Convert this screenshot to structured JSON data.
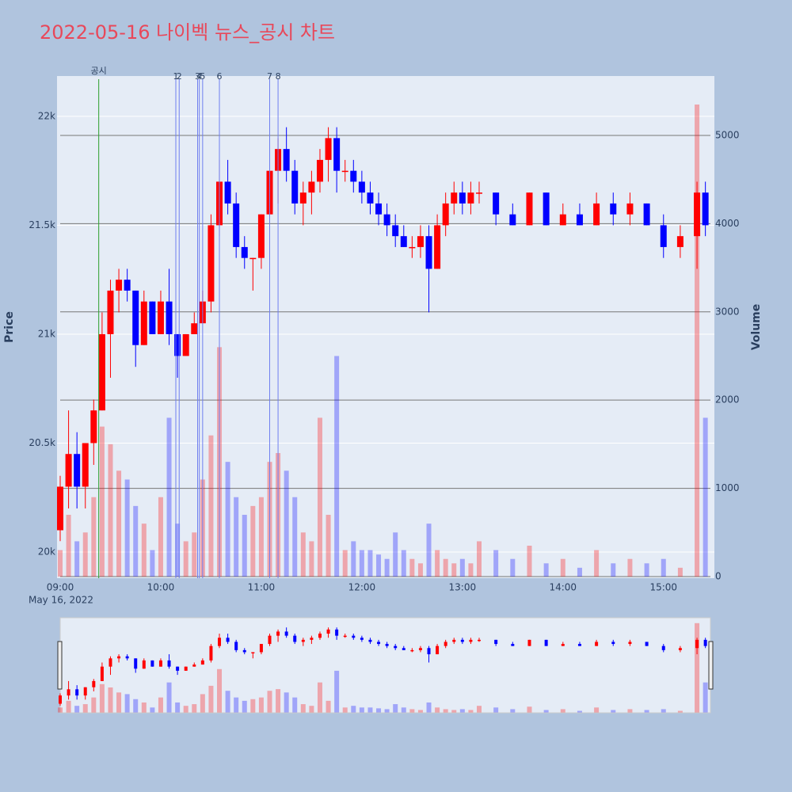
{
  "chart_data": {
    "type": "candlestick",
    "title": "2022-05-16 나이벡 뉴스_공시 차트",
    "y_label": "Price",
    "y2_label": "Volume",
    "date_label": "May 16, 2022",
    "increasing_color": "#ff0000",
    "decreasing_color": "#0000ff",
    "xlim": [
      "09:00",
      "15:28"
    ],
    "xticks": [
      "09:00",
      "10:00",
      "11:00",
      "12:00",
      "13:00",
      "14:00",
      "15:00"
    ],
    "ylim": [
      19880,
      22185
    ],
    "yticks": [
      {
        "value": 20000,
        "label": "20k"
      },
      {
        "value": 20500,
        "label": "20.5k"
      },
      {
        "value": 21000,
        "label": "21k"
      },
      {
        "value": 21500,
        "label": "21.5k"
      },
      {
        "value": 22000,
        "label": "22k"
      }
    ],
    "y2lim": [
      -18,
      5673
    ],
    "y2ticks": [
      0,
      1000,
      2000,
      3000,
      4000,
      5000
    ],
    "events": [
      {
        "x": "09:23",
        "label": "공시",
        "color": "#2ca02c"
      },
      {
        "x": "10:09",
        "label": "1",
        "color": "#6f7ff0"
      },
      {
        "x": "10:11",
        "label": "2",
        "color": "#6f7ff0"
      },
      {
        "x": "10:22",
        "label": "3",
        "color": "#6f7ff0"
      },
      {
        "x": "10:23",
        "label": "4",
        "color": "#6f7ff0"
      },
      {
        "x": "10:25",
        "label": "5",
        "color": "#6f7ff0"
      },
      {
        "x": "10:35",
        "label": "6",
        "color": "#6f7ff0"
      },
      {
        "x": "11:05",
        "label": "7",
        "color": "#6f7ff0"
      },
      {
        "x": "11:10",
        "label": "8",
        "color": "#6f7ff0"
      }
    ],
    "x": [
      "09:00",
      "09:05",
      "09:10",
      "09:15",
      "09:20",
      "09:25",
      "09:30",
      "09:35",
      "09:40",
      "09:45",
      "09:50",
      "09:55",
      "10:00",
      "10:05",
      "10:10",
      "10:15",
      "10:20",
      "10:25",
      "10:30",
      "10:35",
      "10:40",
      "10:45",
      "10:50",
      "10:55",
      "11:00",
      "11:05",
      "11:10",
      "11:15",
      "11:20",
      "11:25",
      "11:30",
      "11:35",
      "11:40",
      "11:45",
      "11:50",
      "11:55",
      "12:00",
      "12:05",
      "12:10",
      "12:15",
      "12:20",
      "12:25",
      "12:30",
      "12:35",
      "12:40",
      "12:45",
      "12:50",
      "12:55",
      "13:00",
      "13:05",
      "13:10",
      "13:20",
      "13:30",
      "13:40",
      "13:50",
      "14:00",
      "14:10",
      "14:20",
      "14:30",
      "14:40",
      "14:50",
      "15:00",
      "15:10",
      "15:20",
      "15:25"
    ],
    "open": [
      20100,
      20300,
      20450,
      20300,
      20500,
      20650,
      21000,
      21200,
      21250,
      21200,
      20950,
      21150,
      21000,
      21150,
      21000,
      20900,
      21000,
      21050,
      21150,
      21500,
      21700,
      21600,
      21400,
      21350,
      21350,
      21550,
      21750,
      21850,
      21750,
      21600,
      21650,
      21700,
      21800,
      21900,
      21750,
      21750,
      21700,
      21650,
      21600,
      21550,
      21500,
      21450,
      21400,
      21400,
      21450,
      21300,
      21500,
      21600,
      21650,
      21600,
      21650,
      21650,
      21550,
      21500,
      21650,
      21500,
      21550,
      21500,
      21600,
      21550,
      21600,
      21500,
      21400,
      21450,
      21650
    ],
    "high": [
      20350,
      20650,
      20550,
      20500,
      20700,
      21100,
      21250,
      21300,
      21300,
      21200,
      21200,
      21150,
      21200,
      21300,
      21000,
      21000,
      21100,
      21200,
      21550,
      21800,
      21800,
      21650,
      21450,
      21350,
      21550,
      21800,
      21900,
      21950,
      21800,
      21700,
      21750,
      21850,
      21950,
      21950,
      21800,
      21800,
      21750,
      21700,
      21650,
      21600,
      21550,
      21500,
      21450,
      21500,
      21500,
      21550,
      21650,
      21700,
      21700,
      21700,
      21700,
      21650,
      21600,
      21650,
      21650,
      21600,
      21600,
      21650,
      21650,
      21650,
      21600,
      21550,
      21500,
      21700,
      21700
    ],
    "low": [
      20050,
      20200,
      20200,
      20200,
      20400,
      20650,
      20800,
      21100,
      21150,
      20850,
      20950,
      21000,
      21000,
      20950,
      20800,
      20900,
      21000,
      21050,
      21100,
      21450,
      21550,
      21350,
      21300,
      21200,
      21300,
      21500,
      21600,
      21700,
      21550,
      21500,
      21550,
      21650,
      21700,
      21650,
      21700,
      21650,
      21600,
      21550,
      21500,
      21450,
      21400,
      21400,
      21350,
      21350,
      21100,
      21300,
      21450,
      21550,
      21550,
      21550,
      21600,
      21500,
      21500,
      21500,
      21500,
      21500,
      21500,
      21500,
      21500,
      21500,
      21500,
      21350,
      21350,
      21300,
      21450
    ],
    "close": [
      20300,
      20450,
      20300,
      20500,
      20650,
      21000,
      21200,
      21250,
      21200,
      20950,
      21150,
      21000,
      21150,
      21000,
      20900,
      21000,
      21050,
      21150,
      21500,
      21700,
      21600,
      21400,
      21350,
      21350,
      21550,
      21750,
      21850,
      21750,
      21600,
      21650,
      21700,
      21800,
      21900,
      21750,
      21750,
      21700,
      21650,
      21600,
      21550,
      21500,
      21450,
      21400,
      21400,
      21450,
      21300,
      21500,
      21600,
      21650,
      21600,
      21650,
      21650,
      21550,
      21500,
      21650,
      21500,
      21550,
      21500,
      21600,
      21550,
      21600,
      21500,
      21400,
      21450,
      21650,
      21500
    ],
    "volume": [
      300,
      700,
      400,
      500,
      900,
      1700,
      1500,
      1200,
      1100,
      800,
      600,
      300,
      900,
      1800,
      600,
      400,
      500,
      1100,
      1600,
      2600,
      1300,
      900,
      700,
      800,
      900,
      1300,
      1400,
      1200,
      900,
      500,
      400,
      1800,
      700,
      2500,
      300,
      400,
      300,
      300,
      250,
      200,
      500,
      300,
      200,
      150,
      600,
      300,
      200,
      150,
      200,
      150,
      400,
      300,
      200,
      350,
      150,
      200,
      100,
      300,
      150,
      200,
      150,
      200,
      100,
      5350,
      1800
    ]
  }
}
